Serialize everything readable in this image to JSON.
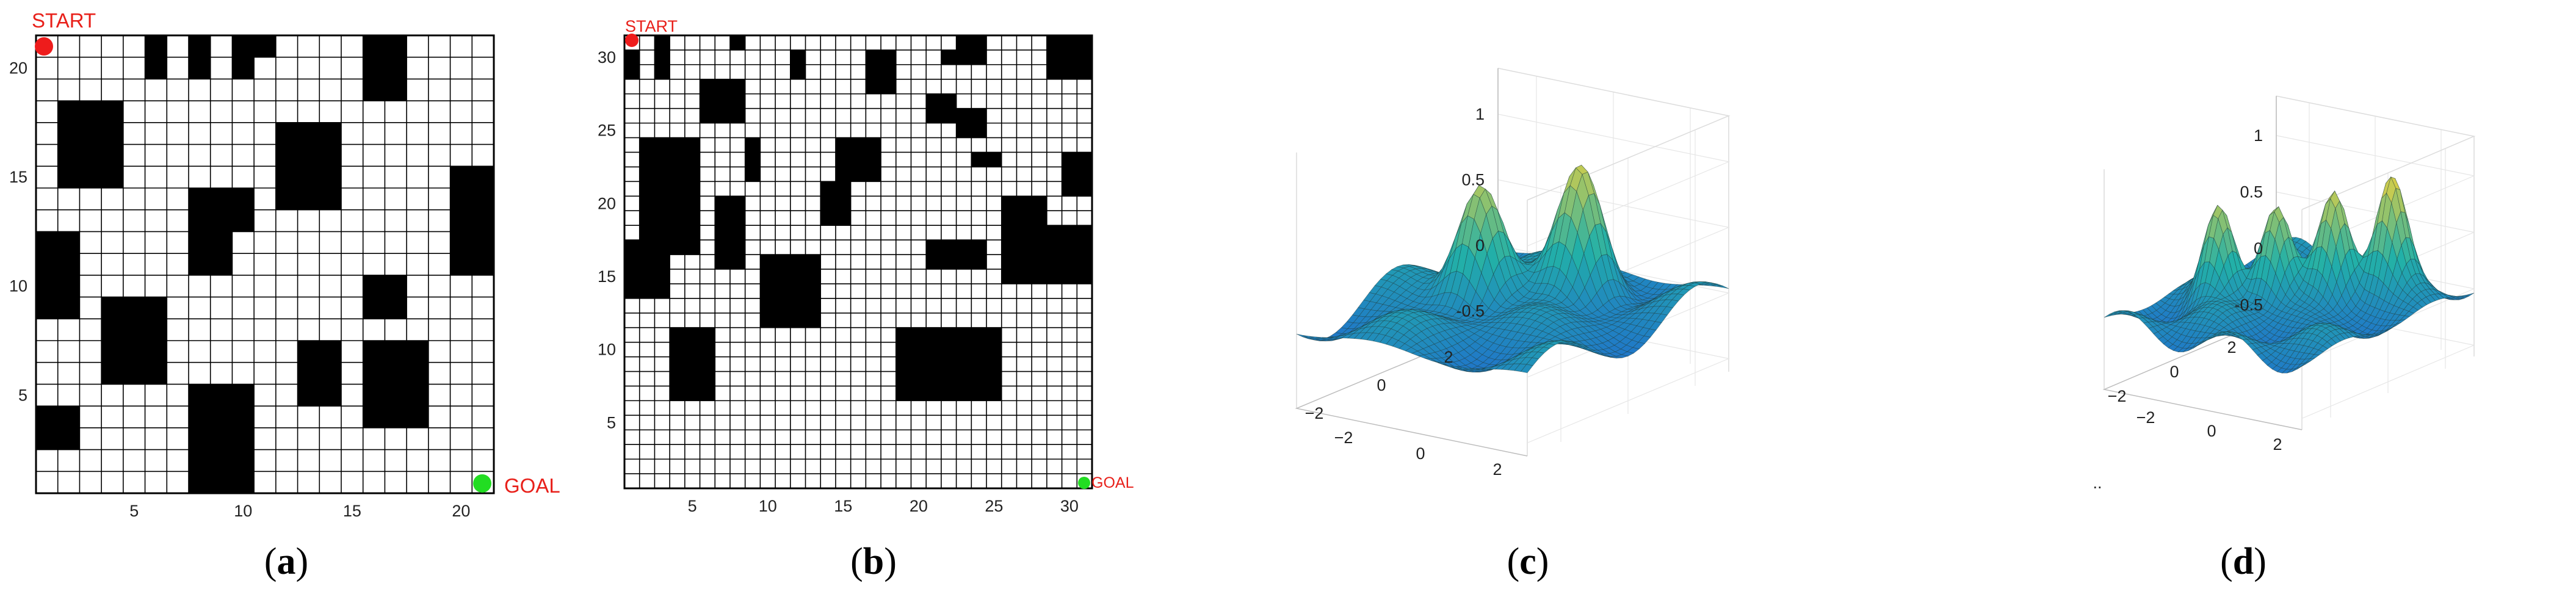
{
  "panels": {
    "a": {
      "label_open": "(",
      "label_letter": "a",
      "label_close": ")",
      "start_label": "START",
      "goal_label": "GOAL",
      "x_ticks": [
        "5",
        "10",
        "15",
        "20"
      ],
      "y_ticks": [
        "5",
        "10",
        "15",
        "20"
      ]
    },
    "b": {
      "label_open": "(",
      "label_letter": "b",
      "label_close": ")",
      "start_label": "START",
      "goal_label": "GOAL",
      "x_ticks": [
        "5",
        "10",
        "15",
        "20",
        "25",
        "30"
      ],
      "y_ticks": [
        "5",
        "10",
        "15",
        "20",
        "25",
        "30"
      ]
    },
    "c": {
      "label_open": "(",
      "label_letter": "c",
      "label_close": ")",
      "z_ticks": [
        "1",
        "0.5",
        "0",
        "-0.5"
      ],
      "left_ticks": [
        "2",
        "0",
        "−2"
      ],
      "right_ticks": [
        "−2",
        "0",
        "2"
      ]
    },
    "d": {
      "label_open": "(",
      "label_letter": "d",
      "label_close": ")",
      "z_ticks": [
        "1",
        "0.5",
        "0",
        "-0.5"
      ],
      "left_ticks": [
        "2",
        "0",
        "−2"
      ],
      "right_ticks": [
        "−2",
        "0",
        "2"
      ],
      "stray_mark": ".."
    }
  },
  "colors": {
    "start": "#ee1c1c",
    "goal": "#22dd22",
    "label_red": "#e8201a",
    "obstacle": "#000000",
    "surface_low": "#1f5fd6",
    "surface_mid": "#22b0a8",
    "surface_high": "#f2d23a"
  }
}
